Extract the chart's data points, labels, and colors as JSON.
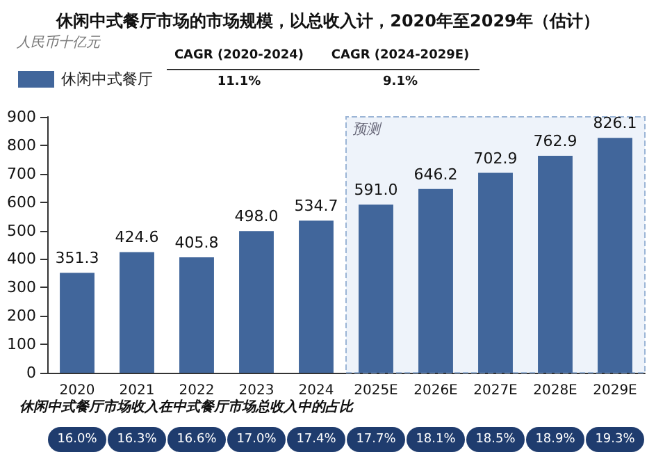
{
  "chart_data": {
    "type": "bar",
    "title": "休闲中式餐厅市场的市场规模，以总收入计，2020年至2029年（估计）",
    "ylabel": "人民币十亿元",
    "categories": [
      "2020",
      "2021",
      "2022",
      "2023",
      "2024",
      "2025E",
      "2026E",
      "2027E",
      "2028E",
      "2029E"
    ],
    "series": [
      {
        "name": "休闲中式餐厅",
        "color": "#41669b",
        "values": [
          351.3,
          424.6,
          405.8,
          498.0,
          534.7,
          591.0,
          646.2,
          702.9,
          762.9,
          826.1
        ]
      }
    ],
    "value_labels": [
      "351.3",
      "424.6",
      "405.8",
      "498.0",
      "534.7",
      "591.0",
      "646.2",
      "702.9",
      "762.9",
      "826.1"
    ],
    "ylim": [
      0,
      900
    ],
    "yticks": [
      0,
      100,
      200,
      300,
      400,
      500,
      600,
      700,
      800,
      900
    ],
    "grid": false,
    "legend": "top left",
    "bands": [
      {
        "axis": "x",
        "from": "2025E",
        "to": "2029E",
        "label": "预测",
        "color": "#eef3fa"
      }
    ],
    "annotations": [
      "CAGR (2020-2024)",
      "CAGR (2024-2029E)",
      "11.1%",
      "9.1%",
      "休闲中式餐厅市场收入在中式餐厅市场总收入中的占比",
      "16.0%",
      "16.3%",
      "16.6%",
      "17.0%",
      "17.4%",
      "17.7%",
      "18.1%",
      "18.5%",
      "18.9%",
      "19.3%"
    ]
  }
}
